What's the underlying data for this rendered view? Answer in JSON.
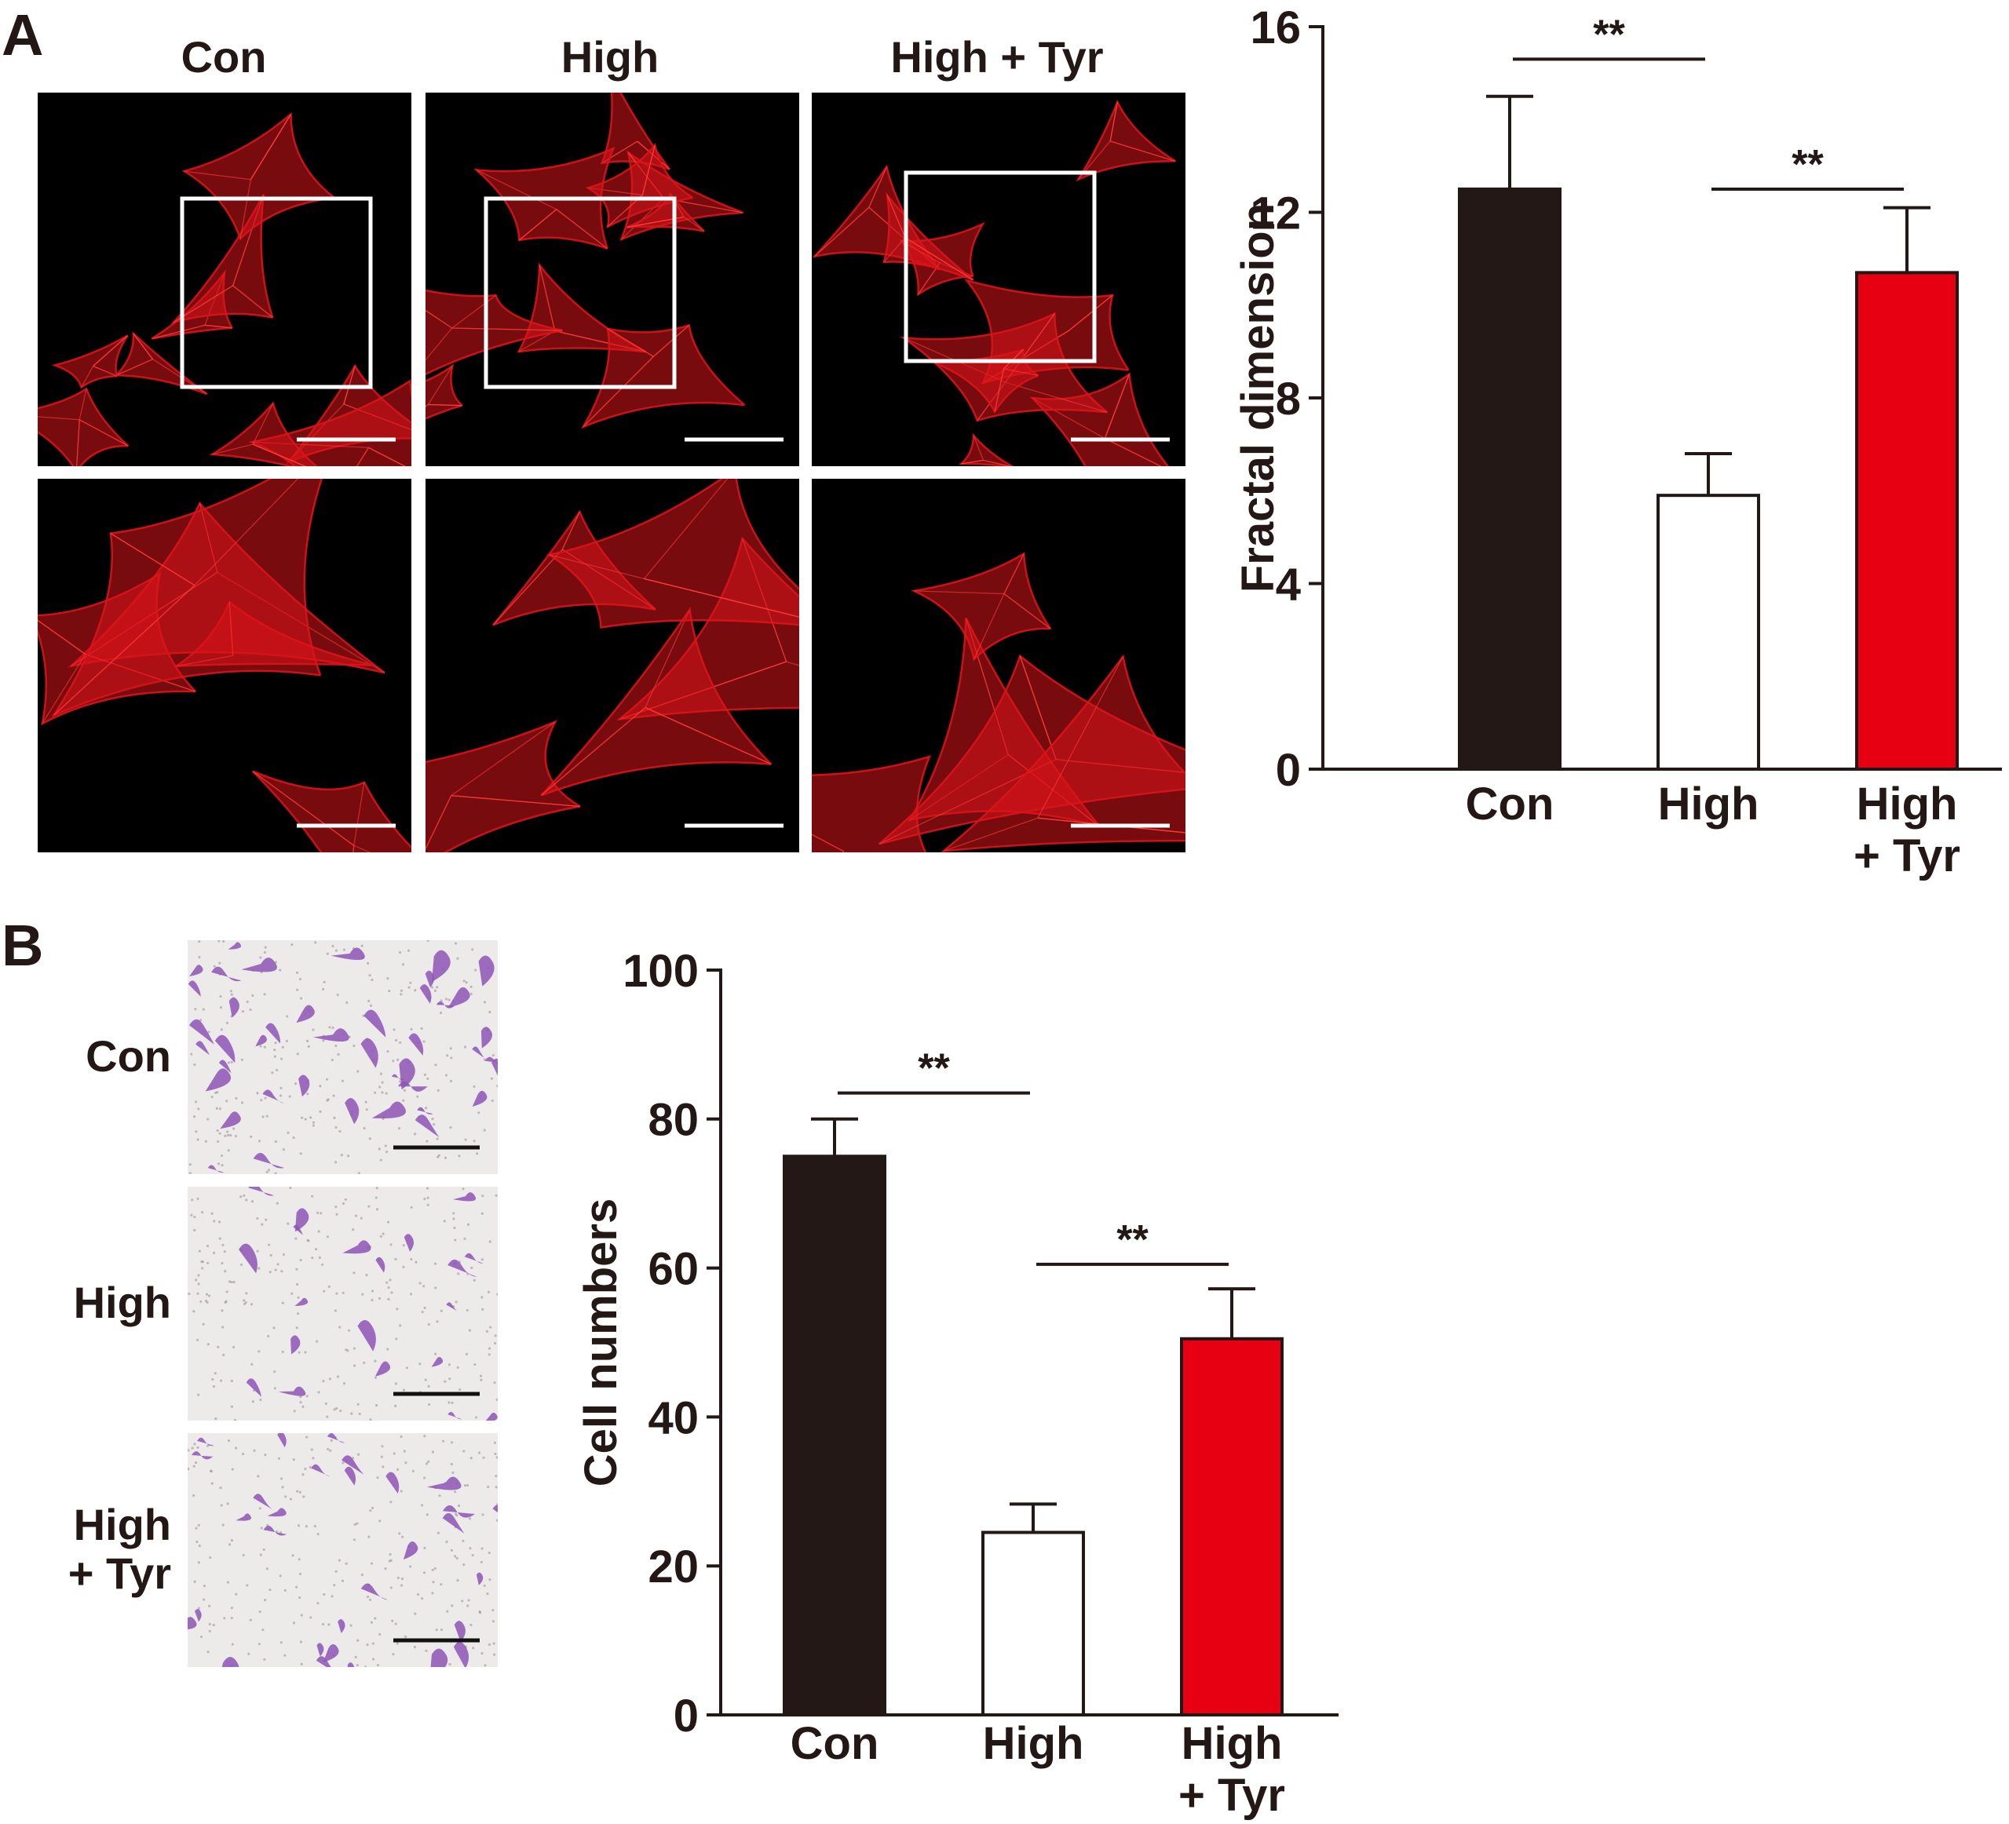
{
  "panels": {
    "A": {
      "letter": "A",
      "columns": [
        "Con",
        "High",
        "High + Tyr"
      ],
      "colors": {
        "bg": "#000000",
        "stain": "#d9141a",
        "box": "#ffffff",
        "scalebar": "#ffffff"
      }
    },
    "B": {
      "letter": "B",
      "rows": [
        {
          "lines": [
            "Con"
          ]
        },
        {
          "lines": [
            "High"
          ]
        },
        {
          "lines": [
            "High",
            "+ Tyr"
          ]
        }
      ],
      "colors": {
        "bg": "#ecebea",
        "stain": "#8e55b6",
        "dots": "#9a8a94",
        "scalebar": "#111111"
      }
    }
  },
  "chart_data": [
    {
      "type": "bar",
      "categories": [
        [
          "Con"
        ],
        [
          "High"
        ],
        [
          "High",
          "+ Tyr"
        ]
      ],
      "values": [
        12.5,
        5.9,
        10.7
      ],
      "errors": [
        2.0,
        0.9,
        1.4
      ],
      "colors": [
        "#231815",
        "#ffffff",
        "#e60012"
      ],
      "title": "",
      "ylabel": "Fractal dimension",
      "ylim": [
        0,
        16
      ],
      "yticks": [
        0,
        4,
        8,
        12,
        16
      ],
      "significance": [
        {
          "from": 0,
          "to": 1,
          "label": "**",
          "level": 15.3
        },
        {
          "from": 1,
          "to": 2,
          "label": "**",
          "level": 12.5
        }
      ]
    },
    {
      "type": "bar",
      "categories": [
        [
          "Con"
        ],
        [
          "High"
        ],
        [
          "High",
          "+ Tyr"
        ]
      ],
      "values": [
        75,
        24.5,
        50.5
      ],
      "errors": [
        5,
        3.8,
        6.7
      ],
      "colors": [
        "#231815",
        "#ffffff",
        "#e60012"
      ],
      "title": "",
      "ylabel": "Cell numbers",
      "ylim": [
        0,
        100
      ],
      "yticks": [
        0,
        20,
        40,
        60,
        80,
        100
      ],
      "significance": [
        {
          "from": 0,
          "to": 1,
          "label": "**",
          "level": 83.5
        },
        {
          "from": 1,
          "to": 2,
          "label": "**",
          "level": 60.5
        }
      ]
    }
  ]
}
